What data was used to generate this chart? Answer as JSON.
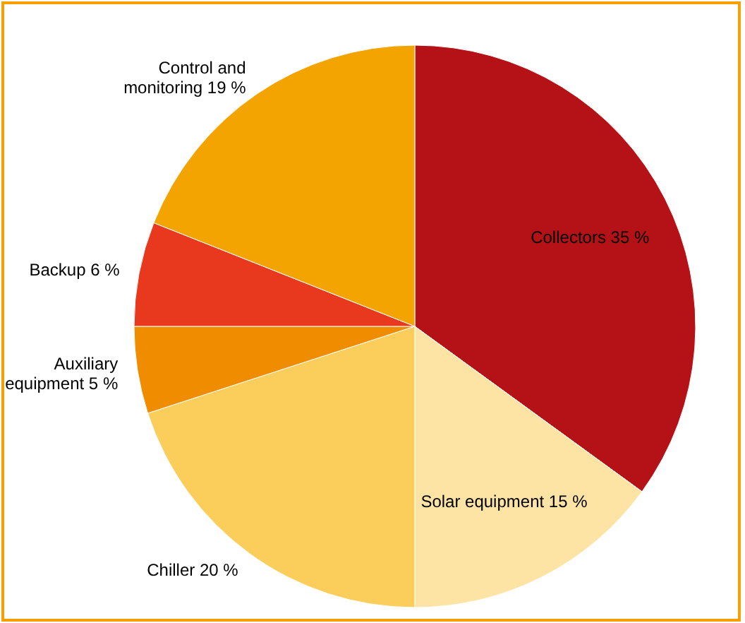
{
  "chart_data": {
    "type": "pie",
    "categories": [
      "Collectors",
      "Solar equipment",
      "Chiller",
      "Auxiliary equipment",
      "Backup",
      "Control and monitoring"
    ],
    "values": [
      35,
      15,
      20,
      5,
      6,
      19
    ],
    "value_labels": [
      "35 %",
      "15 %",
      "20 %",
      "5 %",
      "6 %",
      "19 %"
    ],
    "colors": [
      "#b51218",
      "#fde4a5",
      "#fbcd5a",
      "#f08c00",
      "#e8381e",
      "#f3a400"
    ]
  }
}
